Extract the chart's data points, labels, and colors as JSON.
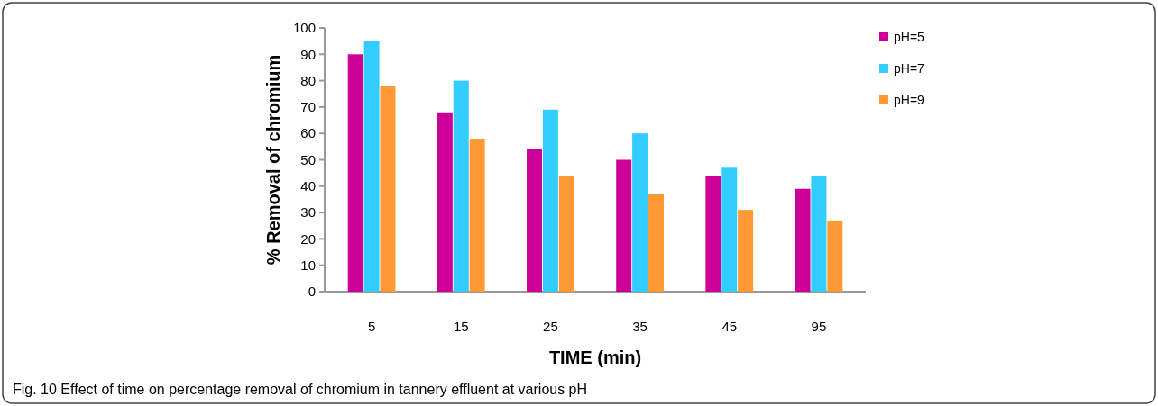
{
  "chart_data": {
    "type": "bar",
    "xlabel": "TIME (min)",
    "ylabel": "% Removal of chromium",
    "categories": [
      "5",
      "15",
      "25",
      "35",
      "45",
      "95"
    ],
    "series": [
      {
        "name": "pH=5",
        "color": "#cc0099",
        "values": [
          90,
          68,
          54,
          50,
          44,
          39
        ]
      },
      {
        "name": "pH=7",
        "color": "#33ccff",
        "values": [
          95,
          80,
          69,
          60,
          47,
          44
        ]
      },
      {
        "name": "pH=9",
        "color": "#ff9933",
        "values": [
          78,
          58,
          44,
          37,
          31,
          27
        ]
      }
    ],
    "ylim": [
      0,
      100
    ],
    "yticks": [
      0,
      10,
      20,
      30,
      40,
      50,
      60,
      70,
      80,
      90,
      100
    ],
    "grid": false,
    "legend": "top right",
    "annotations": [
      "Fig. 10 Effect of time on percentage removal of chromium in tannery effluent at various pH"
    ]
  }
}
